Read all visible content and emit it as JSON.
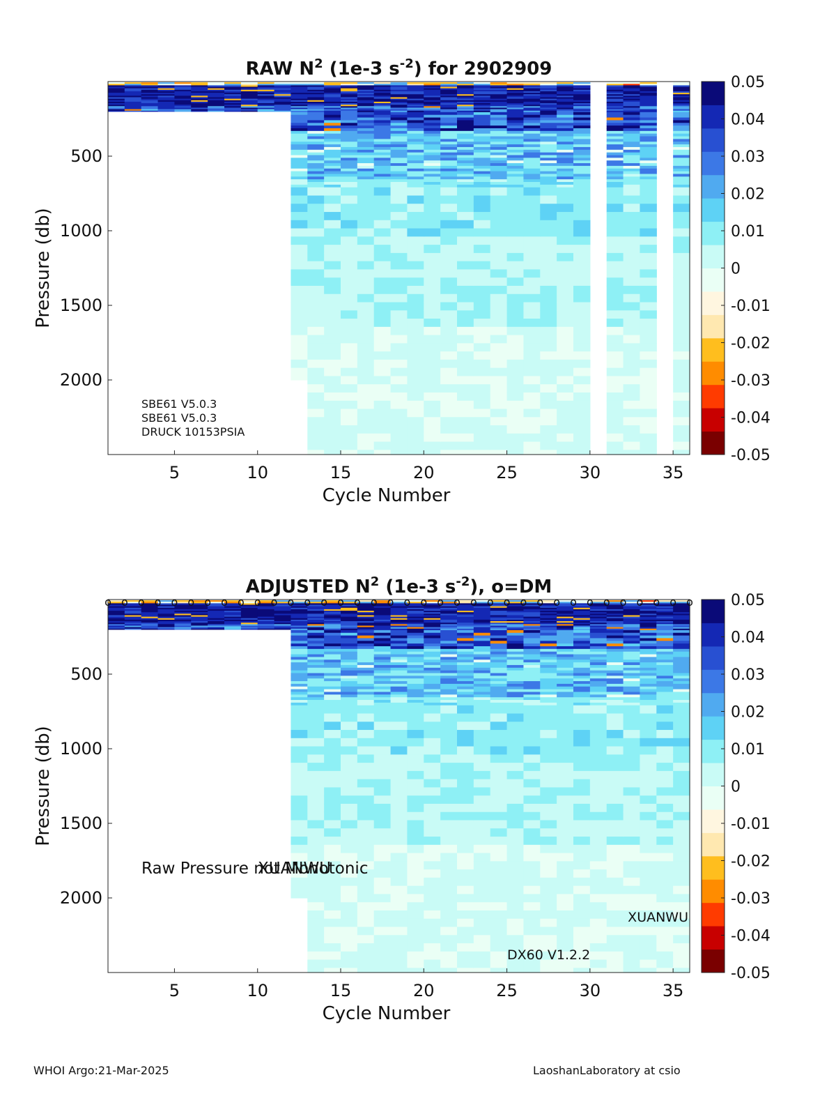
{
  "footer": {
    "left": "WHOI Argo:21-Mar-2025",
    "right": "LaoshanLaboratory at csio"
  },
  "colors": {
    "scale": [
      "#7a0000",
      "#c80000",
      "#ff3b00",
      "#ff8c00",
      "#ffbe1e",
      "#ffe8b0",
      "#fff6e0",
      "#eafff5",
      "#c9fbf6",
      "#8ef0f5",
      "#5ed2f5",
      "#50aaf0",
      "#3c78e6",
      "#2850d2",
      "#1428b4",
      "#0a0a78"
    ]
  },
  "chart_data": [
    {
      "type": "heatmap",
      "title_main": "RAW N",
      "title_sup1": "2",
      "title_mid": " (1e-3 s",
      "title_sup2": "-2",
      "title_end": ") for 2902909",
      "xlabel": "Cycle Number",
      "ylabel": "Pressure (db)",
      "xlim": [
        1,
        36
      ],
      "ylim": [
        2500,
        0
      ],
      "xticks": [
        5,
        10,
        15,
        20,
        25,
        30,
        35
      ],
      "yticks": [
        500,
        1000,
        1500,
        2000
      ],
      "colorbar": {
        "ticks": [
          0.05,
          0.04,
          0.03,
          0.02,
          0.01,
          0,
          -0.01,
          -0.02,
          -0.03,
          -0.04,
          -0.05
        ],
        "range": [
          -0.05,
          0.05
        ]
      },
      "missing_cycles": [
        31,
        35
      ],
      "profile_max_pressure": {
        "cycles_1_to_11": 200,
        "cycle_12": 2000,
        "cycles_13_plus": 2500
      },
      "annotations": [
        "SBE61 V5.0.3",
        "SBE61 V5.0.3",
        "DRUCK 10153PSIA"
      ],
      "dm_markers": false
    },
    {
      "type": "heatmap",
      "title_main": "ADJUSTED N",
      "title_sup1": "2",
      "title_mid": " (1e-3 s",
      "title_sup2": "-2",
      "title_end": "), o=DM",
      "xlabel": "Cycle Number",
      "ylabel": "Pressure (db)",
      "xlim": [
        1,
        36
      ],
      "ylim": [
        2500,
        0
      ],
      "xticks": [
        5,
        10,
        15,
        20,
        25,
        30,
        35
      ],
      "yticks": [
        500,
        1000,
        1500,
        2000
      ],
      "colorbar": {
        "ticks": [
          0.05,
          0.04,
          0.03,
          0.02,
          0.01,
          0,
          -0.01,
          -0.02,
          -0.03,
          -0.04,
          -0.05
        ],
        "range": [
          -0.05,
          0.05
        ]
      },
      "missing_cycles": [],
      "profile_max_pressure": {
        "cycles_1_to_11": 200,
        "cycle_12": 2000,
        "cycles_13_plus": 2500
      },
      "annotations_overlap": [
        "Raw Pressure not Monotonic",
        "XUANWU"
      ],
      "annotation_right": "XUANWU",
      "annotation_bottom": "DX60 V1.2.2",
      "dm_marker": "o",
      "dm_markers": true
    }
  ]
}
